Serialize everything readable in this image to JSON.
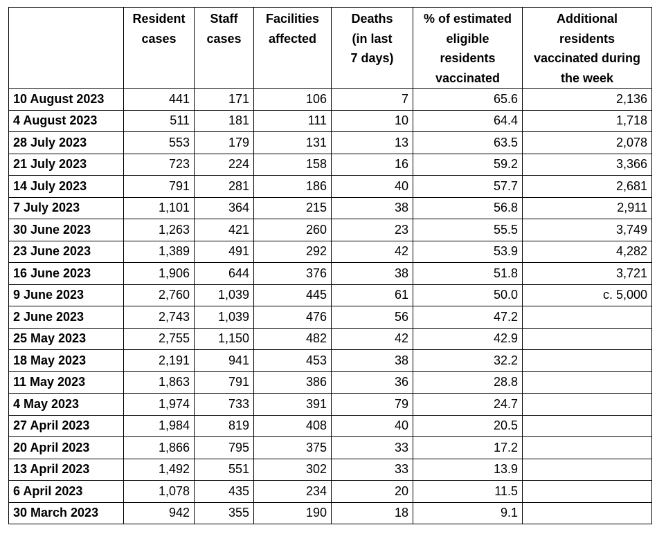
{
  "table": {
    "headers": [
      [
        "Resident",
        "cases"
      ],
      [
        "Staff",
        "cases"
      ],
      [
        "Facilities",
        "affected"
      ],
      [
        "Deaths",
        "(in last",
        "7 days)"
      ],
      [
        "% of estimated",
        "eligible",
        "residents",
        "vaccinated"
      ],
      [
        "Additional",
        "residents",
        "vaccinated during",
        "the week"
      ]
    ],
    "rows": [
      [
        "10 August 2023",
        "441",
        "171",
        "106",
        "7",
        "65.6",
        "2,136"
      ],
      [
        "4 August 2023",
        "511",
        "181",
        "111",
        "10",
        "64.4",
        "1,718"
      ],
      [
        "28 July 2023",
        "553",
        "179",
        "131",
        "13",
        "63.5",
        "2,078"
      ],
      [
        "21 July 2023",
        "723",
        "224",
        "158",
        "16",
        "59.2",
        "3,366"
      ],
      [
        "14 July 2023",
        "791",
        "281",
        "186",
        "40",
        "57.7",
        "2,681"
      ],
      [
        "7 July 2023",
        "1,101",
        "364",
        "215",
        "38",
        "56.8",
        "2,911"
      ],
      [
        "30 June 2023",
        "1,263",
        "421",
        "260",
        "23",
        "55.5",
        "3,749"
      ],
      [
        "23 June 2023",
        "1,389",
        "491",
        "292",
        "42",
        "53.9",
        "4,282"
      ],
      [
        "16 June 2023",
        "1,906",
        "644",
        "376",
        "38",
        "51.8",
        "3,721"
      ],
      [
        "9 June 2023",
        "2,760",
        "1,039",
        "445",
        "61",
        "50.0",
        "c. 5,000"
      ],
      [
        "2 June 2023",
        "2,743",
        "1,039",
        "476",
        "56",
        "47.2"
      ],
      [
        "25 May 2023",
        "2,755",
        "1,150",
        "482",
        "42",
        "42.9"
      ],
      [
        "18 May 2023",
        "2,191",
        "941",
        "453",
        "38",
        "32.2"
      ],
      [
        "11 May 2023",
        "1,863",
        "791",
        "386",
        "36",
        "28.8"
      ],
      [
        "4 May 2023",
        "1,974",
        "733",
        "391",
        "79",
        "24.7"
      ],
      [
        "27 April 2023",
        "1,984",
        "819",
        "408",
        "40",
        "20.5"
      ],
      [
        "20 April 2023",
        "1,866",
        "795",
        "375",
        "33",
        "17.2"
      ],
      [
        "13 April 2023",
        "1,492",
        "551",
        "302",
        "33",
        "13.9"
      ],
      [
        "6 April 2023",
        "1,078",
        "435",
        "234",
        "20",
        "11.5"
      ],
      [
        "30 March 2023",
        "942",
        "355",
        "190",
        "18",
        "9.1"
      ]
    ]
  }
}
